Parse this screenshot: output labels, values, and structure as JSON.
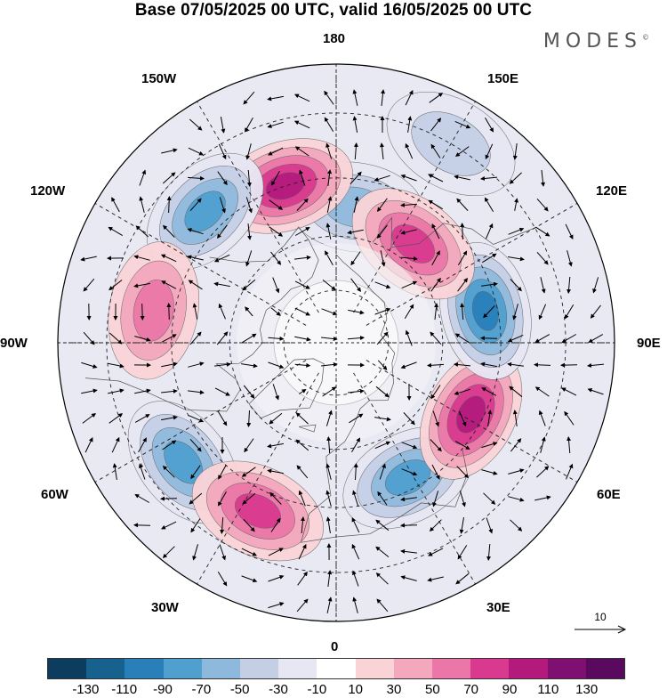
{
  "title": "Base 07/05/2025 00 UTC, valid 16/05/2025 00 UTC",
  "brand": {
    "name": "MODES",
    "mark": "©"
  },
  "longitude_labels": {
    "l180": "180",
    "l150w": "150W",
    "l150e": "150E",
    "l120w": "120W",
    "l120e": "120E",
    "l90w": "90W",
    "l90e": "90E",
    "l60w": "60W",
    "l60e": "60E",
    "l30w": "30W",
    "l30e": "30E",
    "l0": "0"
  },
  "reference_vector": {
    "label": "10"
  },
  "colorbar": {
    "colors": [
      "#0d3d5e",
      "#17618f",
      "#2980b9",
      "#4f9fcf",
      "#8fb9dc",
      "#c4cfe6",
      "#e7e7f3",
      "#ffffff",
      "#fad3d6",
      "#f3a8bd",
      "#eb77a8",
      "#d9398e",
      "#b31a7c",
      "#7f0f70",
      "#5a0a5e"
    ],
    "ticks": [
      "-130",
      "-110",
      "-90",
      "-70",
      "-50",
      "-30",
      "-10",
      "10",
      "30",
      "50",
      "70",
      "90",
      "110",
      "130"
    ]
  },
  "map": {
    "projection": "north-polar-stereographic",
    "anomalies": [
      {
        "name": "neg-aleutian",
        "lon": 172,
        "lat": 52,
        "value": -60
      },
      {
        "name": "pos-bering-west",
        "lon": -162,
        "lat": 45,
        "value": 100
      },
      {
        "name": "neg-alaska-gulf",
        "lon": -135,
        "lat": 40,
        "value": -90
      },
      {
        "name": "pos-canada-west",
        "lon": -100,
        "lat": 40,
        "value": 60
      },
      {
        "name": "neg-atlantic-west",
        "lon": -52,
        "lat": 38,
        "value": -90
      },
      {
        "name": "pos-atlantic-east",
        "lon": -25,
        "lat": 40,
        "value": 90
      },
      {
        "name": "neg-europe",
        "lon": 28,
        "lat": 48,
        "value": -90
      },
      {
        "name": "pos-siberia-west",
        "lon": 62,
        "lat": 48,
        "value": 110
      },
      {
        "name": "neg-siberia-east",
        "lon": 102,
        "lat": 48,
        "value": -100
      },
      {
        "name": "pos-far-east",
        "lon": 142,
        "lat": 55,
        "value": 90
      },
      {
        "name": "neg-pacific-nw",
        "lon": 150,
        "lat": 30,
        "value": -40
      }
    ]
  }
}
